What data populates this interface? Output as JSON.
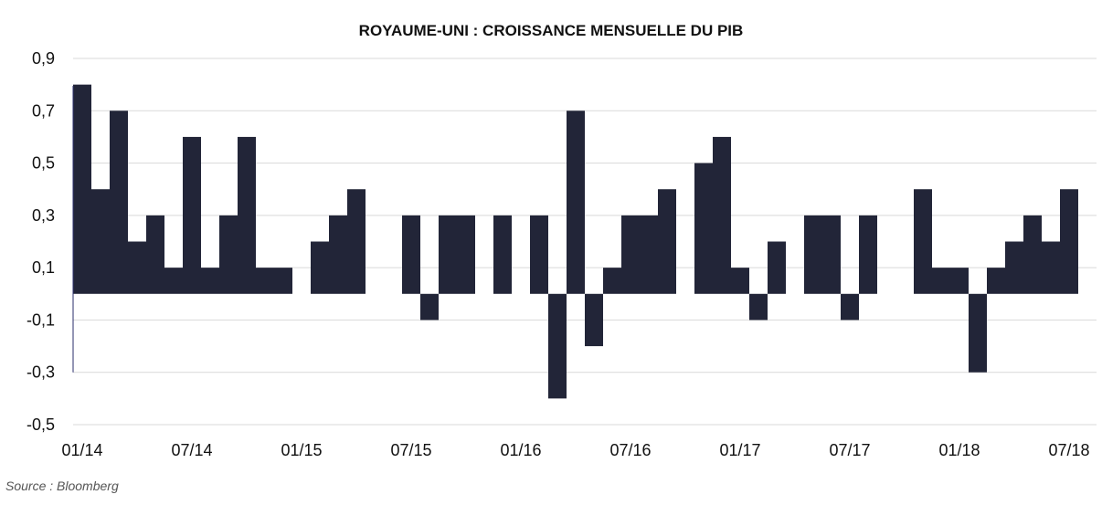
{
  "source": "Source : Bloomberg",
  "colors": {
    "bar": "#222538",
    "grid": "#d9d9d9",
    "axis": "#2a2d6b"
  },
  "chart_data": {
    "type": "bar",
    "title": "ROYAUME-UNI : CROISSANCE MENSUELLE DU PIB",
    "xlabel": "",
    "ylabel": "",
    "ylim": [
      -0.5,
      0.9
    ],
    "yticks": [
      0.9,
      0.7,
      0.5,
      0.3,
      0.1,
      -0.1,
      -0.3,
      -0.5
    ],
    "ytick_labels": [
      "0,9",
      "0,7",
      "0,5",
      "0,3",
      "0,1",
      "-0,1",
      "-0,3",
      "-0,5"
    ],
    "xtick_labels": [
      {
        "index": 0,
        "label": "01/14"
      },
      {
        "index": 6,
        "label": "07/14"
      },
      {
        "index": 12,
        "label": "01/15"
      },
      {
        "index": 18,
        "label": "07/15"
      },
      {
        "index": 24,
        "label": "01/16"
      },
      {
        "index": 30,
        "label": "07/16"
      },
      {
        "index": 36,
        "label": "01/17"
      },
      {
        "index": 42,
        "label": "07/17"
      },
      {
        "index": 48,
        "label": "01/18"
      },
      {
        "index": 54,
        "label": "07/18"
      }
    ],
    "grid": true,
    "legend": "none",
    "categories": [
      "01/14",
      "02/14",
      "03/14",
      "04/14",
      "05/14",
      "06/14",
      "07/14",
      "08/14",
      "09/14",
      "10/14",
      "11/14",
      "12/14",
      "01/15",
      "02/15",
      "03/15",
      "04/15",
      "05/15",
      "06/15",
      "07/15",
      "08/15",
      "09/15",
      "10/15",
      "11/15",
      "12/15",
      "01/16",
      "02/16",
      "03/16",
      "04/16",
      "05/16",
      "06/16",
      "07/16",
      "08/16",
      "09/16",
      "10/16",
      "11/16",
      "12/16",
      "01/17",
      "02/17",
      "03/17",
      "04/17",
      "05/17",
      "06/17",
      "07/17",
      "08/17",
      "09/17",
      "10/17",
      "11/17",
      "12/17",
      "01/18",
      "02/18",
      "03/18",
      "04/18",
      "05/18",
      "06/18",
      "07/18"
    ],
    "values": [
      0.8,
      0.4,
      0.7,
      0.2,
      0.3,
      0.1,
      0.6,
      0.1,
      0.3,
      0.6,
      0.1,
      0.1,
      0.0,
      0.2,
      0.3,
      0.4,
      0.0,
      0.0,
      0.3,
      -0.1,
      0.3,
      0.3,
      0.0,
      0.3,
      0.0,
      0.3,
      -0.4,
      0.7,
      -0.2,
      0.1,
      0.3,
      0.3,
      0.4,
      0.0,
      0.5,
      0.6,
      0.1,
      -0.1,
      0.2,
      0.0,
      0.3,
      0.3,
      -0.1,
      0.3,
      0.0,
      0.0,
      0.4,
      0.1,
      0.1,
      -0.3,
      0.1,
      0.2,
      0.3,
      0.2,
      0.4
    ]
  }
}
